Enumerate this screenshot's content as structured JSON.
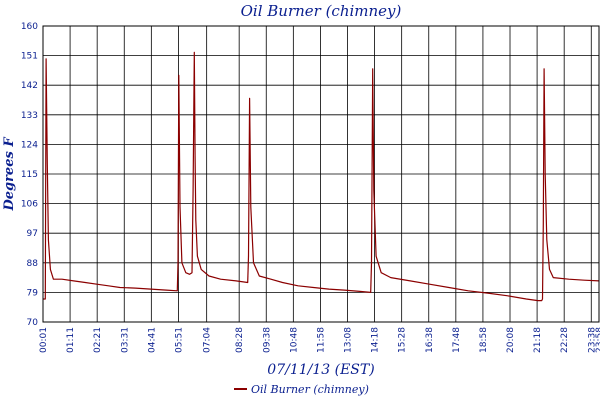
{
  "chart_data": {
    "type": "line",
    "title": "Oil Burner (chimney)",
    "xlabel": "07/11/13 (EST)",
    "ylabel": "Degrees F",
    "ylim": [
      70,
      160
    ],
    "yticks": [
      70,
      79,
      88,
      97,
      106,
      115,
      124,
      133,
      142,
      151,
      160
    ],
    "xlim": [
      1,
      1438
    ],
    "xticks": [
      {
        "label": "00:01",
        "value": 1
      },
      {
        "label": "01:11",
        "value": 71
      },
      {
        "label": "02:21",
        "value": 141
      },
      {
        "label": "03:31",
        "value": 211
      },
      {
        "label": "04:41",
        "value": 281
      },
      {
        "label": "05:51",
        "value": 351
      },
      {
        "label": "07:04",
        "value": 424
      },
      {
        "label": "08:28",
        "value": 508
      },
      {
        "label": "09:38",
        "value": 578
      },
      {
        "label": "10:48",
        "value": 648
      },
      {
        "label": "11:58",
        "value": 718
      },
      {
        "label": "13:08",
        "value": 788
      },
      {
        "label": "14:18",
        "value": 858
      },
      {
        "label": "15:28",
        "value": 928
      },
      {
        "label": "16:38",
        "value": 998
      },
      {
        "label": "17:48",
        "value": 1068
      },
      {
        "label": "18:58",
        "value": 1138
      },
      {
        "label": "20:08",
        "value": 1208
      },
      {
        "label": "21:18",
        "value": 1278
      },
      {
        "label": "22:28",
        "value": 1348
      },
      {
        "label": "23:38",
        "value": 1418
      },
      {
        "label": "23:58",
        "value": 1438
      }
    ],
    "grid": true,
    "legend": {
      "position": "bottom",
      "entries": [
        "Oil Burner (chimney)"
      ]
    },
    "series": [
      {
        "name": "Oil Burner (chimney)",
        "color": "#8b0000",
        "points": [
          [
            1,
            77
          ],
          [
            7,
            77
          ],
          [
            9,
            150
          ],
          [
            12,
            118
          ],
          [
            15,
            95
          ],
          [
            20,
            86
          ],
          [
            28,
            83
          ],
          [
            50,
            83
          ],
          [
            80,
            82.5
          ],
          [
            110,
            82
          ],
          [
            140,
            81.5
          ],
          [
            170,
            81
          ],
          [
            200,
            80.5
          ],
          [
            240,
            80.3
          ],
          [
            280,
            80
          ],
          [
            320,
            79.7
          ],
          [
            348,
            79.5
          ],
          [
            350,
            88
          ],
          [
            352,
            145
          ],
          [
            355,
            105
          ],
          [
            360,
            88
          ],
          [
            370,
            85
          ],
          [
            380,
            84.5
          ],
          [
            386,
            85
          ],
          [
            389,
            110
          ],
          [
            392,
            152
          ],
          [
            394,
            120
          ],
          [
            396,
            101
          ],
          [
            400,
            90
          ],
          [
            410,
            86
          ],
          [
            430,
            84
          ],
          [
            460,
            83
          ],
          [
            500,
            82.5
          ],
          [
            530,
            82
          ],
          [
            532,
            90
          ],
          [
            535,
            138
          ],
          [
            538,
            105
          ],
          [
            545,
            88
          ],
          [
            560,
            84
          ],
          [
            590,
            83
          ],
          [
            620,
            82
          ],
          [
            660,
            81
          ],
          [
            700,
            80.5
          ],
          [
            740,
            80
          ],
          [
            780,
            79.7
          ],
          [
            820,
            79.3
          ],
          [
            848,
            79
          ],
          [
            850,
            88
          ],
          [
            853,
            147
          ],
          [
            856,
            110
          ],
          [
            862,
            90
          ],
          [
            875,
            85
          ],
          [
            900,
            83.5
          ],
          [
            950,
            82.5
          ],
          [
            1000,
            81.5
          ],
          [
            1050,
            80.5
          ],
          [
            1100,
            79.5
          ],
          [
            1150,
            78.8
          ],
          [
            1200,
            78
          ],
          [
            1250,
            77
          ],
          [
            1280,
            76.5
          ],
          [
            1290,
            76.5
          ],
          [
            1292,
            77
          ],
          [
            1294,
            100
          ],
          [
            1296,
            147
          ],
          [
            1299,
            115
          ],
          [
            1303,
            95
          ],
          [
            1310,
            86
          ],
          [
            1320,
            83.5
          ],
          [
            1360,
            83
          ],
          [
            1400,
            82.7
          ],
          [
            1438,
            82.5
          ]
        ]
      }
    ]
  }
}
